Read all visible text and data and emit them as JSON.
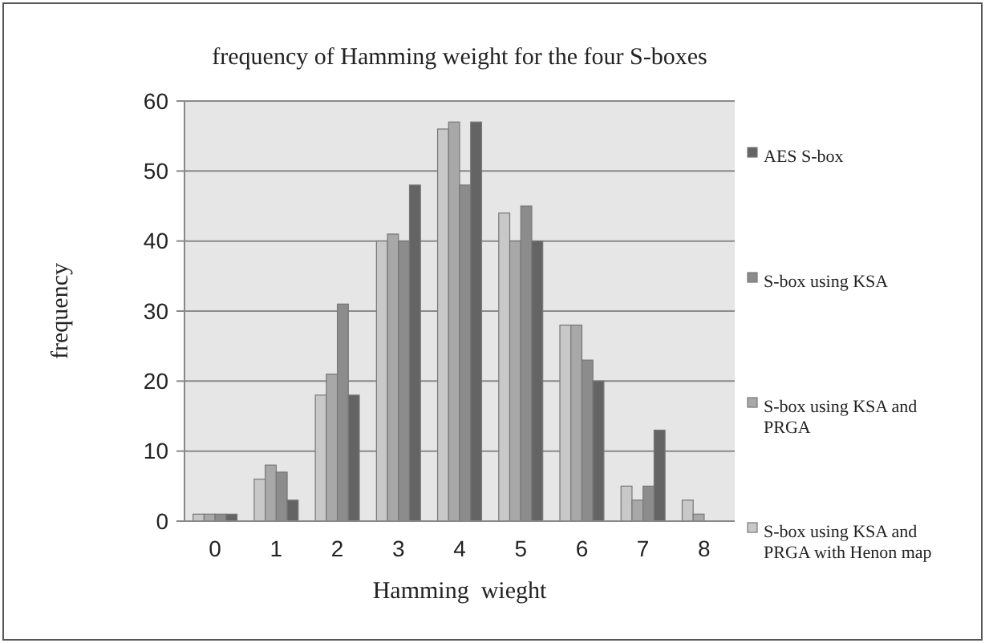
{
  "chart_data": {
    "type": "bar",
    "title": "frequency of Hamming weight for the four S-boxes",
    "xlabel": "Hamming  wieght",
    "ylabel": "frequency",
    "categories": [
      "0",
      "1",
      "2",
      "3",
      "4",
      "5",
      "6",
      "7",
      "8"
    ],
    "series": [
      {
        "name": "S-box using KSA and PRGA with Henon map",
        "color": "#c8c8c8",
        "values": [
          1,
          6,
          18,
          40,
          56,
          44,
          28,
          5,
          3
        ]
      },
      {
        "name": "S-box using KSA and PRGA",
        "color": "#a8a8a8",
        "values": [
          1,
          8,
          21,
          41,
          57,
          40,
          28,
          3,
          1
        ]
      },
      {
        "name": "S-box using KSA",
        "color": "#8c8c8c",
        "values": [
          1,
          7,
          31,
          40,
          48,
          45,
          23,
          5,
          0
        ]
      },
      {
        "name": "AES S-box",
        "color": "#646464",
        "values": [
          1,
          3,
          18,
          48,
          57,
          40,
          20,
          13,
          0
        ]
      }
    ],
    "ylim": [
      0,
      60
    ],
    "yticks": [
      0,
      10,
      20,
      30,
      40,
      50,
      60
    ],
    "grid": "y",
    "legend": "right"
  }
}
